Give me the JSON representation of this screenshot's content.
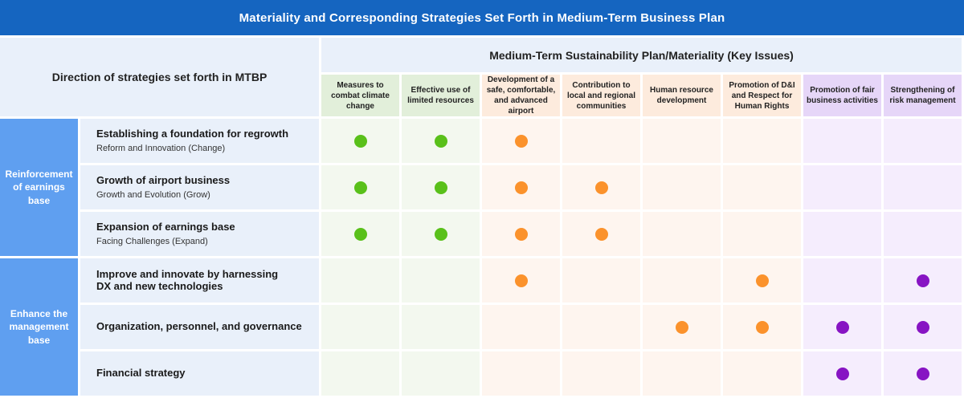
{
  "title": "Materiality and Corresponding Strategies Set Forth in Medium-Term Business Plan",
  "header": {
    "left": "Direction of strategies set forth in MTBP",
    "right": "Medium-Term Sustainability Plan/Materiality (Key Issues)"
  },
  "colors": {
    "title_bar": "#1565c0",
    "group_cell": "#5f9ff0",
    "green": "#59c01a",
    "orange": "#fb922c",
    "purple": "#8714c3"
  },
  "issues": [
    {
      "label": "Measures to combat climate change",
      "category": "green"
    },
    {
      "label": "Effective use of limited resources",
      "category": "green"
    },
    {
      "label": "Development of a safe, comfortable, and advanced airport",
      "category": "orange"
    },
    {
      "label": "Contribution to local and regional communities",
      "category": "orange"
    },
    {
      "label": "Human resource development",
      "category": "orange"
    },
    {
      "label": "Promotion of D&I and Respect for Human Rights",
      "category": "orange"
    },
    {
      "label": "Promotion of fair business activities",
      "category": "purple"
    },
    {
      "label": "Strengthening of risk management",
      "category": "purple"
    }
  ],
  "groups": [
    {
      "label": "Reinforcement of earnings base"
    },
    {
      "label": "Enhance the management base"
    }
  ],
  "strategies": [
    {
      "title": "Establishing a foundation for regrowth",
      "subtitle": "Reform and Innovation (Change)",
      "marks": [
        1,
        1,
        1,
        0,
        0,
        0,
        0,
        0
      ]
    },
    {
      "title": "Growth of airport business",
      "subtitle": "Growth and Evolution (Grow)",
      "marks": [
        1,
        1,
        1,
        1,
        0,
        0,
        0,
        0
      ]
    },
    {
      "title": "Expansion of earnings base",
      "subtitle": "Facing Challenges (Expand)",
      "marks": [
        1,
        1,
        1,
        1,
        0,
        0,
        0,
        0
      ]
    },
    {
      "title": "Improve and innovate by harnessing DX and new technologies",
      "subtitle": "",
      "marks": [
        0,
        0,
        1,
        0,
        0,
        1,
        0,
        1
      ]
    },
    {
      "title": "Organization, personnel, and governance",
      "subtitle": "",
      "marks": [
        0,
        0,
        0,
        0,
        1,
        1,
        1,
        1
      ]
    },
    {
      "title": "Financial strategy",
      "subtitle": "",
      "marks": [
        0,
        0,
        0,
        0,
        0,
        0,
        1,
        1
      ]
    }
  ]
}
